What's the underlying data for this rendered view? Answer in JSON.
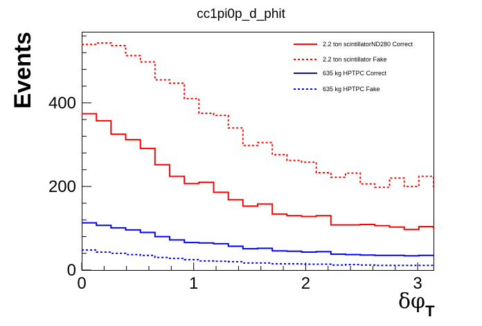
{
  "chart_data": {
    "type": "line",
    "title": "cc1pi0p_d_phit",
    "ylabel": "Events",
    "xlabel_main": "δφ",
    "xlabel_sub": "T",
    "xlim": [
      0,
      3.1416
    ],
    "ylim": [
      0,
      570
    ],
    "x_ticks": [
      0,
      1,
      2,
      3
    ],
    "y_ticks": [
      0,
      200,
      400
    ],
    "x_tick_labels": [
      "0",
      "1",
      "2",
      "3"
    ],
    "y_tick_labels": [
      "0",
      "200",
      "400"
    ],
    "legend_position": "top-right",
    "bin_edges": [
      0,
      0.1309,
      0.2618,
      0.3927,
      0.5236,
      0.6545,
      0.7854,
      0.9163,
      1.0472,
      1.1781,
      1.309,
      1.4399,
      1.5708,
      1.7017,
      1.8326,
      1.9635,
      2.0944,
      2.2253,
      2.3562,
      2.4871,
      2.618,
      2.7489,
      2.8798,
      3.0107,
      3.1416
    ],
    "series": [
      {
        "name": "2.2 ton scintillatorND280 Correct",
        "color": "#ff0000",
        "style": "solid",
        "values": [
          374,
          357,
          325,
          312,
          291,
          252,
          224,
          207,
          210,
          186,
          168,
          153,
          158,
          134,
          130,
          128,
          130,
          108,
          108,
          109,
          106,
          103,
          97,
          104,
          99
        ]
      },
      {
        "name": "2.2 ton scintillator Fake",
        "color": "#ff0000",
        "style": "dashed",
        "values": [
          540,
          543,
          537,
          513,
          498,
          455,
          447,
          410,
          375,
          370,
          340,
          298,
          305,
          276,
          262,
          258,
          233,
          222,
          232,
          206,
          198,
          220,
          200,
          224,
          196
        ]
      },
      {
        "name": "635 kg HPTPC Correct",
        "color": "#0000ff",
        "style": "solid",
        "values": [
          113,
          107,
          101,
          96,
          90,
          80,
          72,
          66,
          65,
          63,
          57,
          51,
          52,
          46,
          45,
          43,
          44,
          38,
          37,
          36,
          35,
          35,
          34,
          35,
          34
        ]
      },
      {
        "name": "635 kg HPTPC Fake",
        "color": "#0000ff",
        "style": "dashed",
        "values": [
          48,
          43,
          40,
          37,
          35,
          30,
          28,
          25,
          22,
          21,
          20,
          17,
          17,
          15,
          15,
          14,
          14,
          12,
          13,
          12,
          11,
          11,
          11,
          11,
          10
        ]
      }
    ]
  }
}
